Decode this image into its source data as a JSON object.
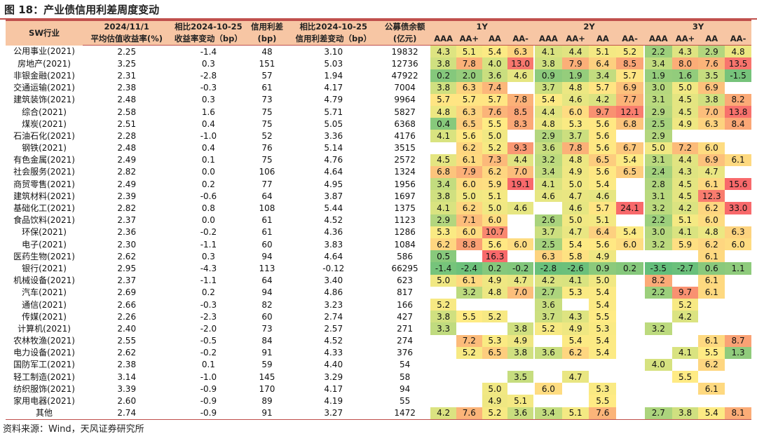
{
  "title": "图 18：产业债信用利差周度变动",
  "source": "资料来源：Wind，天风证券研究所",
  "header": {
    "sw": "SW行业",
    "date_top": "2024/11/1",
    "date_bot": "平均估值收益率(%)",
    "chg_top": "相比2024-10-25",
    "chg_bot": "收益率变动（bp）",
    "spread_top": "信用利差",
    "spread_bot": "(bp)",
    "schg_top": "相比2024-10-25",
    "schg_bot": "信用利差变动（bp）",
    "bal_top": "公募债余额",
    "bal_bot": "(亿元)",
    "groups": [
      "1Y",
      "2Y",
      "3Y"
    ],
    "ratings": [
      "AAA",
      "AA+",
      "AA",
      "AA-"
    ]
  },
  "colors": {
    "header_bg": "#f7c6a4",
    "rule": "#c0504d"
  },
  "rows": [
    {
      "ind": "公用事业(2021)",
      "y": "2.25",
      "yc": "-1.4",
      "sp": "48",
      "spc": "3.10",
      "bal": "19832",
      "c1": [
        "4.3",
        "5.1",
        "5.4",
        "6.3"
      ],
      "c2": [
        "4.1",
        "4.4",
        "5.1",
        "5.2"
      ],
      "c3": [
        "2.2",
        "4.3",
        "2.9",
        "4.8"
      ]
    },
    {
      "ind": "房地产(2021)",
      "y": "3.25",
      "yc": "0.3",
      "sp": "151",
      "spc": "5.03",
      "bal": "12736",
      "c1": [
        "3.8",
        "7.8",
        "4.0",
        "13.0"
      ],
      "c2": [
        "3.8",
        "7.9",
        "6.4",
        "8.5"
      ],
      "c3": [
        "3.4",
        "8.0",
        "7.6",
        "13.5"
      ]
    },
    {
      "ind": "非银金融(2021)",
      "y": "2.31",
      "yc": "-2.8",
      "sp": "57",
      "spc": "1.94",
      "bal": "47922",
      "c1": [
        "0.2",
        "2.0",
        "3.6",
        "4.6"
      ],
      "c2": [
        "0.9",
        "1.9",
        "3.4",
        "5.7"
      ],
      "c3": [
        "1.9",
        "1.6",
        "3.5",
        "-1.5"
      ]
    },
    {
      "ind": "交通运输(2021)",
      "y": "2.38",
      "yc": "-0.3",
      "sp": "61",
      "spc": "4.17",
      "bal": "7004",
      "c1": [
        "3.8",
        "6.3",
        "7.4",
        ""
      ],
      "c2": [
        "3.7",
        "4.8",
        "5.7",
        "6.9"
      ],
      "c3": [
        "3.0",
        "5.0",
        "6.9",
        ""
      ]
    },
    {
      "ind": "建筑装饰(2021)",
      "y": "2.48",
      "yc": "0.3",
      "sp": "73",
      "spc": "4.79",
      "bal": "9964",
      "c1": [
        "5.7",
        "5.7",
        "5.7",
        "7.8"
      ],
      "c2": [
        "5.4",
        "4.6",
        "4.2",
        "7.7"
      ],
      "c3": [
        "3.1",
        "4.5",
        "3.8",
        "8.2"
      ]
    },
    {
      "ind": "综合(2021)",
      "y": "2.58",
      "yc": "1.6",
      "sp": "75",
      "spc": "5.71",
      "bal": "5827",
      "c1": [
        "4.8",
        "6.3",
        "7.6",
        "8.5"
      ],
      "c2": [
        "4.4",
        "6.0",
        "9.7",
        "12.1"
      ],
      "c3": [
        "2.9",
        "4.5",
        "7.0",
        "13.8"
      ]
    },
    {
      "ind": "煤炭(2021)",
      "y": "2.51",
      "yc": "0.4",
      "sp": "75",
      "spc": "5.05",
      "bal": "6368",
      "c1": [
        "0.4",
        "6.5",
        "5.5",
        "8.3"
      ],
      "c2": [
        "4.8",
        "5.3",
        "5.6",
        "6.8"
      ],
      "c3": [
        "2.5",
        "4.9",
        "6.3",
        "8.4"
      ]
    },
    {
      "ind": "石油石化(2021)",
      "y": "2.28",
      "yc": "-1.0",
      "sp": "52",
      "spc": "3.36",
      "bal": "4176",
      "c1": [
        "4.1",
        "5.6",
        "5.0",
        ""
      ],
      "c2": [
        "2.9",
        "3.7",
        "5.6",
        ""
      ],
      "c3": [
        "2.9",
        "",
        "",
        ""
      ]
    },
    {
      "ind": "钢铁(2021)",
      "y": "2.48",
      "yc": "0.4",
      "sp": "76",
      "spc": "5.14",
      "bal": "3515",
      "c1": [
        "",
        "6.2",
        "5.2",
        "9.3"
      ],
      "c2": [
        "3.6",
        "7.8",
        "5.6",
        "6.7"
      ],
      "c3": [
        "5.0",
        "7.2",
        "6.0",
        ""
      ]
    },
    {
      "ind": "有色金属(2021)",
      "y": "2.49",
      "yc": "0.1",
      "sp": "75",
      "spc": "4.76",
      "bal": "2572",
      "c1": [
        "4.5",
        "6.1",
        "7.3",
        "4.4"
      ],
      "c2": [
        "3.2",
        "4.8",
        "6.5",
        "5.4"
      ],
      "c3": [
        "3.1",
        "4.4",
        "6.9",
        "6.1"
      ]
    },
    {
      "ind": "社会服务(2021)",
      "y": "2.82",
      "yc": "0.0",
      "sp": "106",
      "spc": "4.64",
      "bal": "1324",
      "c1": [
        "6.8",
        "7.9",
        "6.2",
        "7.0"
      ],
      "c2": [
        "3.4",
        "4.9",
        "5.6",
        "6.5"
      ],
      "c3": [
        "2.4",
        "4.3",
        "4.7",
        ""
      ]
    },
    {
      "ind": "商贸零售(2021)",
      "y": "2.49",
      "yc": "0.2",
      "sp": "77",
      "spc": "4.95",
      "bal": "1956",
      "c1": [
        "3.4",
        "6.0",
        "5.9",
        "19.1"
      ],
      "c2": [
        "4.1",
        "5.0",
        "5.4",
        ""
      ],
      "c3": [
        "2.8",
        "4.5",
        "6.1",
        "15.6"
      ]
    },
    {
      "ind": "建筑材料(2021)",
      "y": "2.39",
      "yc": "-0.6",
      "sp": "64",
      "spc": "3.87",
      "bal": "1697",
      "c1": [
        "3.8",
        "5.0",
        "5.1",
        ""
      ],
      "c2": [
        "4.6",
        "4.7",
        "4.6",
        ""
      ],
      "c3": [
        "3.1",
        "4.5",
        "12.3",
        ""
      ]
    },
    {
      "ind": "基础化工(2021)",
      "y": "2.82",
      "yc": "0.8",
      "sp": "108",
      "spc": "5.44",
      "bal": "1375",
      "c1": [
        "4.1",
        "6.2",
        "5.0",
        "4.6"
      ],
      "c2": [
        "",
        "4.6",
        "5.7",
        "24.1"
      ],
      "c3": [
        "3.2",
        "4.2",
        "6.2",
        "33.0"
      ]
    },
    {
      "ind": "食品饮料(2021)",
      "y": "2.37",
      "yc": "0.0",
      "sp": "61",
      "spc": "4.52",
      "bal": "1123",
      "c1": [
        "2.9",
        "7.1",
        "6.0",
        ""
      ],
      "c2": [
        "2.6",
        "5.0",
        "5.1",
        ""
      ],
      "c3": [
        "2.2",
        "5.1",
        "6.0",
        ""
      ]
    },
    {
      "ind": "环保(2021)",
      "y": "2.36",
      "yc": "-0.2",
      "sp": "61",
      "spc": "4.36",
      "bal": "1286",
      "c1": [
        "5.3",
        "6.0",
        "10.7",
        ""
      ],
      "c2": [
        "3.7",
        "4.7",
        "6.4",
        "5.4"
      ],
      "c3": [
        "3.0",
        "4.1",
        "4.8",
        "6.3"
      ]
    },
    {
      "ind": "电子(2021)",
      "y": "2.30",
      "yc": "-1.1",
      "sp": "60",
      "spc": "3.83",
      "bal": "1084",
      "c1": [
        "6.2",
        "8.8",
        "5.6",
        "6.0"
      ],
      "c2": [
        "2.5",
        "5.4",
        "5.6",
        "6.0"
      ],
      "c3": [
        "3.2",
        "5.9",
        "6.2",
        "6.0"
      ]
    },
    {
      "ind": "医药生物(2021)",
      "y": "2.62",
      "yc": "0.3",
      "sp": "94",
      "spc": "4.64",
      "bal": "586",
      "c1": [
        "0.5",
        "",
        "16.3",
        ""
      ],
      "c2": [
        "6.3",
        "5.8",
        "4.9",
        ""
      ],
      "c3": [
        "",
        "",
        "6.1",
        ""
      ]
    },
    {
      "ind": "银行(2021)",
      "y": "2.95",
      "yc": "-4.3",
      "sp": "113",
      "spc": "-0.12",
      "bal": "66295",
      "c1": [
        "-1.4",
        "-2.4",
        "0.2",
        "-0.2"
      ],
      "c2": [
        "-2.8",
        "-2.6",
        "0.9",
        "0.2"
      ],
      "c3": [
        "-3.5",
        "-2.7",
        "0.6",
        "1.1"
      ]
    },
    {
      "ind": "机械设备(2021)",
      "y": "2.37",
      "yc": "-1.1",
      "sp": "64",
      "spc": "3.40",
      "bal": "623",
      "c1": [
        "5.0",
        "6.1",
        "4.9",
        "4.7"
      ],
      "c2": [
        "4.2",
        "4.1",
        "5.0",
        ""
      ],
      "c3": [
        "8.2",
        "",
        "6.1",
        ""
      ]
    },
    {
      "ind": "汽车(2021)",
      "y": "2.69",
      "yc": "0.2",
      "sp": "94",
      "spc": "4.86",
      "bal": "817",
      "c1": [
        "",
        "3.2",
        "4.8",
        "7.0"
      ],
      "c2": [
        "2.7",
        "5.3",
        "5.4",
        ""
      ],
      "c3": [
        "2.2",
        "9.7",
        "6.1",
        ""
      ]
    },
    {
      "ind": "通信(2021)",
      "y": "2.66",
      "yc": "-0.3",
      "sp": "82",
      "spc": "3.23",
      "bal": "166",
      "c1": [
        "5.2",
        "",
        "",
        ""
      ],
      "c2": [
        "3.6",
        "",
        "5.4",
        ""
      ],
      "c3": [
        "",
        "5.2",
        "",
        ""
      ]
    },
    {
      "ind": "传媒(2021)",
      "y": "2.26",
      "yc": "-2.3",
      "sp": "60",
      "spc": "2.74",
      "bal": "427",
      "c1": [
        "3.8",
        "5.5",
        "5.2",
        ""
      ],
      "c2": [
        "3.7",
        "4.3",
        "5.5",
        ""
      ],
      "c3": [
        "",
        "4.2",
        "",
        ""
      ]
    },
    {
      "ind": "计算机(2021)",
      "y": "2.40",
      "yc": "-2.0",
      "sp": "73",
      "spc": "2.57",
      "bal": "271",
      "c1": [
        "3.3",
        "",
        "",
        "3.8"
      ],
      "c2": [
        "5.2",
        "4.9",
        "5.3",
        ""
      ],
      "c3": [
        "3.2",
        "",
        "",
        ""
      ]
    },
    {
      "ind": "农林牧渔(2021)",
      "y": "2.55",
      "yc": "-0.5",
      "sp": "84",
      "spc": "4.52",
      "bal": "274",
      "c1": [
        "",
        "7.2",
        "5.3",
        "4.9"
      ],
      "c2": [
        "",
        "5.4",
        "5.4",
        ""
      ],
      "c3": [
        "",
        "",
        "6.1",
        "8.7"
      ]
    },
    {
      "ind": "电力设备(2021)",
      "y": "2.62",
      "yc": "-0.2",
      "sp": "91",
      "spc": "4.33",
      "bal": "376",
      "c1": [
        "",
        "5.2",
        "6.5",
        "3.8"
      ],
      "c2": [
        "3.6",
        "6.2",
        "5.4",
        ""
      ],
      "c3": [
        "",
        "4.1",
        "5.5",
        "1.3"
      ]
    },
    {
      "ind": "国防军工(2021)",
      "y": "2.38",
      "yc": "0.1",
      "sp": "59",
      "spc": "4.40",
      "bal": "54",
      "c1": [
        "",
        "",
        "",
        ""
      ],
      "c2": [
        "",
        "",
        "",
        ""
      ],
      "c3": [
        "4.0",
        "",
        "6.2",
        ""
      ]
    },
    {
      "ind": "轻工制造(2021)",
      "y": "3.14",
      "yc": "-1.0",
      "sp": "145",
      "spc": "3.29",
      "bal": "58",
      "c1": [
        "",
        "",
        "",
        "3.5"
      ],
      "c2": [
        "",
        "4.7",
        "",
        ""
      ],
      "c3": [
        "",
        "5.5",
        "",
        ""
      ]
    },
    {
      "ind": "纺织服饰(2021)",
      "y": "3.39",
      "yc": "-0.9",
      "sp": "170",
      "spc": "4.17",
      "bal": "94",
      "c1": [
        "",
        "",
        "5.0",
        ""
      ],
      "c2": [
        "6.0",
        "",
        "5.3",
        ""
      ],
      "c3": [
        "",
        "",
        "6.1",
        ""
      ]
    },
    {
      "ind": "家用电器(2021)",
      "y": "2.60",
      "yc": "-0.9",
      "sp": "89",
      "spc": "4.19",
      "bal": "55",
      "c1": [
        "",
        "",
        "4.9",
        "5.1"
      ],
      "c2": [
        "",
        "",
        "5.5",
        ""
      ],
      "c3": [
        "",
        "",
        "",
        ""
      ]
    },
    {
      "ind": "其他",
      "y": "2.74",
      "yc": "-0.9",
      "sp": "91",
      "spc": "3.27",
      "bal": "1472",
      "c1": [
        "4.2",
        "7.6",
        "5.2",
        "3.6"
      ],
      "c2": [
        "3.4",
        "5.1",
        "7.6",
        ""
      ],
      "c3": [
        "2.7",
        "3.8",
        "5.4",
        "8.1"
      ]
    }
  ]
}
